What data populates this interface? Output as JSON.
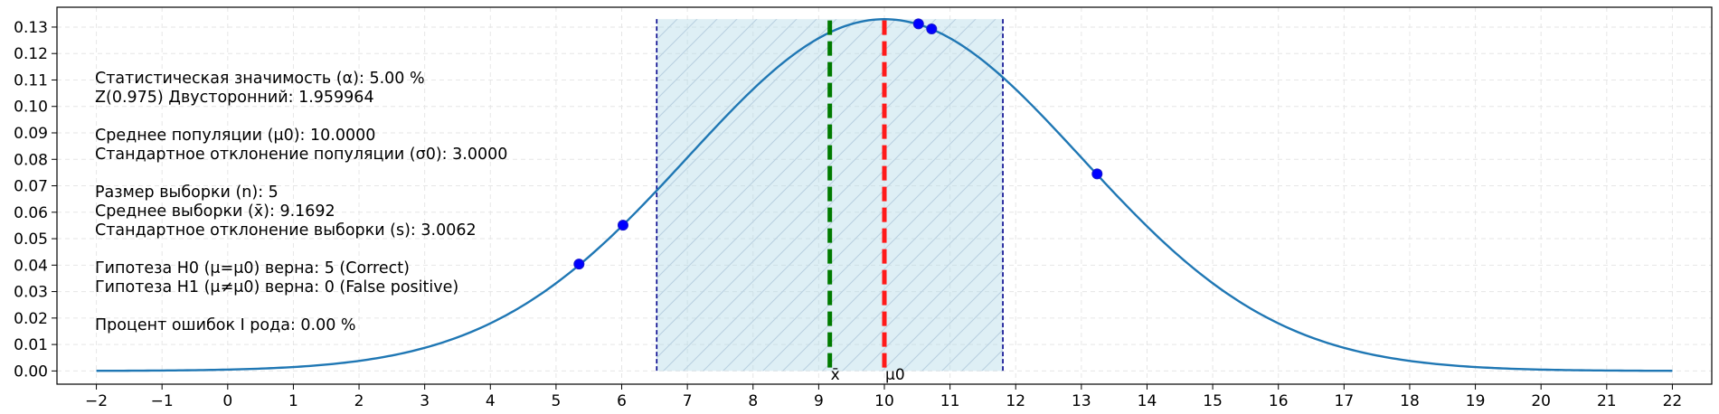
{
  "chart_data": {
    "type": "line",
    "title": "",
    "xlabel": "",
    "ylabel": "",
    "xlim": [
      -2.6,
      22.6
    ],
    "ylim": [
      -0.005,
      0.1375
    ],
    "x_ticks": [
      -2,
      -1,
      0,
      1,
      2,
      3,
      4,
      5,
      6,
      7,
      8,
      9,
      10,
      11,
      12,
      13,
      14,
      15,
      16,
      17,
      18,
      19,
      20,
      21,
      22
    ],
    "x_tick_labels": [
      "−2",
      "−1",
      "0",
      "1",
      "2",
      "3",
      "4",
      "5",
      "6",
      "7",
      "8",
      "9",
      "10",
      "11",
      "12",
      "13",
      "14",
      "15",
      "16",
      "17",
      "18",
      "19",
      "20",
      "21",
      "22"
    ],
    "y_ticks": [
      0,
      0.01,
      0.02,
      0.03,
      0.04,
      0.05,
      0.06,
      0.07,
      0.08,
      0.09,
      0.1,
      0.11,
      0.12,
      0.13
    ],
    "y_tick_labels": [
      "0.00",
      "0.01",
      "0.02",
      "0.03",
      "0.04",
      "0.05",
      "0.06",
      "0.07",
      "0.08",
      "0.09",
      "0.10",
      "0.11",
      "0.12",
      "0.13"
    ],
    "grid": true,
    "curve": {
      "kind": "normal-pdf",
      "mean": 10,
      "sd": 3,
      "x_range": [
        -2,
        22
      ],
      "color": "#1f77b4"
    },
    "acceptance_region": {
      "x_start": 6.5337,
      "x_end": 11.8047,
      "y_top": 0.133,
      "fill_color": "#add8e6",
      "edge_color": "#00008b"
    },
    "sample_points": {
      "x": [
        5.35,
        6.02,
        10.52,
        10.72,
        13.24
      ],
      "y": [
        0.0404,
        0.0551,
        0.1312,
        0.1293,
        0.0745
      ],
      "color": "#0000ff"
    },
    "vertical_markers": [
      {
        "label": "x̄",
        "x": 9.1692,
        "color": "#007a00"
      },
      {
        "label": "μ0",
        "x": 10.0,
        "color": "#ff1a1a"
      }
    ],
    "annotations": [
      "Статистическая значимость (α): 5.00 %",
      "Z(0.975) Двусторонний: 1.959964",
      "Среднее популяции (μ0): 10.0000",
      "Стандартное отклонение популяции (σ0): 3.0000",
      "Размер выборки (n): 5",
      "Среднее выборки (x̄): 9.1692",
      "Стандартное отклонение выборки (s): 3.0062",
      "Гипотеза H0 (μ=μ0) верна: 5 (Correct)",
      "Гипотеза H1 (μ≠μ0) верна: 0 (False positive)",
      "Процент ошибок I рода: 0.00 %"
    ]
  }
}
